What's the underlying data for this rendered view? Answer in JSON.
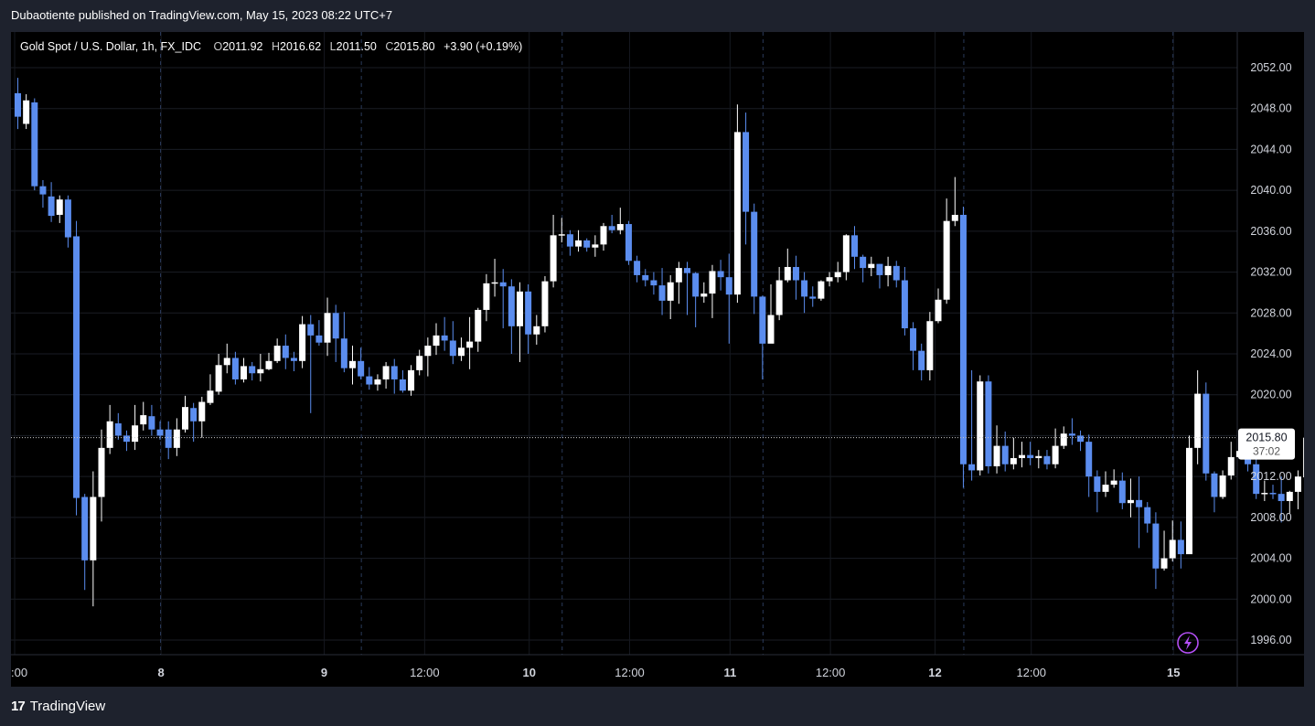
{
  "publisher_line": "Dubaotiente published on TradingView.com, May 15, 2023 08:22 UTC+7",
  "footer": {
    "brand": "TradingView",
    "logo": "17"
  },
  "legend": {
    "symbol": "Gold Spot / U.S. Dollar, 1h, FX_IDC",
    "o_label": "O",
    "o_value": "2011.92",
    "h_label": "H",
    "h_value": "2016.62",
    "l_label": "L",
    "l_value": "2011.50",
    "c_label": "C",
    "c_value": "2015.80",
    "change": "+3.90 (+0.19%)"
  },
  "price_tag": {
    "price": "2015.80",
    "countdown": "37:02"
  },
  "colors": {
    "up": "#ffffff",
    "down": "#5b8def",
    "background": "#000000",
    "frame": "#1e222d",
    "grid": "#1a1d24"
  },
  "chart_data": {
    "type": "candlestick",
    "ylim": [
      1993,
      2055
    ],
    "y_ticks": [
      "2052.00",
      "2048.00",
      "2044.00",
      "2040.00",
      "2036.00",
      "2032.00",
      "2028.00",
      "2024.00",
      "2020.00",
      "2016.00",
      "2012.00",
      "2008.00",
      "2004.00",
      "2000.00",
      "1996.00"
    ],
    "x_ticks": [
      ":00",
      "8",
      "9",
      "12:00",
      "10",
      "12:00",
      "11",
      "12:00",
      "12",
      "12:00",
      "15"
    ],
    "x_tick_bold": [
      false,
      true,
      true,
      false,
      true,
      false,
      true,
      false,
      true,
      false,
      true
    ],
    "x_tick_index": [
      0,
      17.5,
      37,
      49,
      61.5,
      73.5,
      85.5,
      97.5,
      110,
      121.5,
      138.5
    ],
    "day_separator_index": [
      17,
      41,
      65,
      89,
      113,
      138
    ],
    "current_price": 2015.8,
    "candles": [
      [
        2049.5,
        2047.2,
        2051.0,
        2046.0
      ],
      [
        2046.5,
        2048.8,
        2049.4,
        2046.0
      ],
      [
        2048.6,
        2040.4,
        2049.0,
        2040.0
      ],
      [
        2040.4,
        2039.6,
        2041.0,
        2038.3
      ],
      [
        2039.4,
        2037.5,
        2040.8,
        2036.9
      ],
      [
        2037.6,
        2039.1,
        2039.5,
        2036.8
      ],
      [
        2039.1,
        2035.4,
        2039.5,
        2034.4
      ],
      [
        2035.5,
        2009.9,
        2037.0,
        2008.2
      ],
      [
        2010.0,
        2003.8,
        2010.3,
        2000.9
      ],
      [
        2003.8,
        2010.0,
        2012.5,
        1999.3
      ],
      [
        2010.0,
        2014.8,
        2016.6,
        2007.6
      ],
      [
        2014.8,
        2017.4,
        2019.0,
        2014.2
      ],
      [
        2017.2,
        2016.0,
        2018.2,
        2015.6
      ],
      [
        2016.0,
        2015.4,
        2016.5,
        2014.5
      ],
      [
        2015.4,
        2017.0,
        2019.0,
        2014.6
      ],
      [
        2017.1,
        2018.0,
        2019.3,
        2016.5
      ],
      [
        2017.9,
        2016.6,
        2019.0,
        2016.0
      ],
      [
        2016.6,
        2016.0,
        2017.4,
        2015.6
      ],
      [
        2016.6,
        2014.8,
        2017.4,
        2013.7
      ],
      [
        2014.8,
        2016.6,
        2017.7,
        2014.0
      ],
      [
        2016.6,
        2018.8,
        2019.9,
        2016.3
      ],
      [
        2018.7,
        2017.4,
        2019.2,
        2015.4
      ],
      [
        2017.4,
        2019.3,
        2019.8,
        2015.8
      ],
      [
        2019.2,
        2020.4,
        2022.0,
        2019.0
      ],
      [
        2020.3,
        2022.9,
        2024.0,
        2020.0
      ],
      [
        2022.9,
        2023.6,
        2025.0,
        2022.1
      ],
      [
        2023.6,
        2021.5,
        2024.2,
        2021.0
      ],
      [
        2021.5,
        2022.8,
        2023.6,
        2021.2
      ],
      [
        2022.8,
        2022.1,
        2023.2,
        2021.4
      ],
      [
        2022.1,
        2022.5,
        2024.0,
        2021.3
      ],
      [
        2022.5,
        2023.3,
        2024.1,
        2022.4
      ],
      [
        2023.3,
        2024.8,
        2025.5,
        2023.1
      ],
      [
        2024.8,
        2023.6,
        2025.9,
        2022.5
      ],
      [
        2023.6,
        2023.3,
        2024.2,
        2022.3
      ],
      [
        2023.3,
        2026.9,
        2027.7,
        2022.6
      ],
      [
        2026.9,
        2025.8,
        2027.8,
        2018.2
      ],
      [
        2025.8,
        2025.1,
        2027.3,
        2024.8
      ],
      [
        2025.1,
        2028.0,
        2029.5,
        2023.8
      ],
      [
        2028.0,
        2025.5,
        2028.8,
        2023.2
      ],
      [
        2025.5,
        2022.6,
        2028.1,
        2022.2
      ],
      [
        2022.6,
        2023.3,
        2024.8,
        2021.0
      ],
      [
        2023.3,
        2021.8,
        2024.6,
        2021.5
      ],
      [
        2021.8,
        2021.0,
        2022.7,
        2020.5
      ],
      [
        2021.0,
        2021.5,
        2022.0,
        2020.4
      ],
      [
        2021.5,
        2022.8,
        2023.2,
        2020.6
      ],
      [
        2022.8,
        2021.5,
        2023.5,
        2020.1
      ],
      [
        2021.5,
        2020.4,
        2022.4,
        2020.2
      ],
      [
        2020.4,
        2022.4,
        2022.9,
        2019.9
      ],
      [
        2022.4,
        2023.8,
        2024.4,
        2021.9
      ],
      [
        2023.8,
        2024.8,
        2025.6,
        2021.8
      ],
      [
        2024.8,
        2025.8,
        2027.0,
        2023.9
      ],
      [
        2025.8,
        2025.3,
        2027.6,
        2024.3
      ],
      [
        2025.3,
        2023.8,
        2027.2,
        2023.0
      ],
      [
        2023.8,
        2024.6,
        2025.6,
        2023.3
      ],
      [
        2024.6,
        2025.2,
        2027.6,
        2022.5
      ],
      [
        2025.2,
        2028.3,
        2028.5,
        2024.2
      ],
      [
        2028.3,
        2030.9,
        2031.8,
        2027.2
      ],
      [
        2030.9,
        2031.0,
        2033.3,
        2029.6
      ],
      [
        2031.0,
        2030.6,
        2032.3,
        2026.5
      ],
      [
        2030.6,
        2026.7,
        2031.3,
        2024.0
      ],
      [
        2026.7,
        2030.1,
        2031.0,
        2023.2
      ],
      [
        2030.1,
        2025.9,
        2030.8,
        2024.0
      ],
      [
        2025.9,
        2026.7,
        2027.8,
        2024.9
      ],
      [
        2026.7,
        2031.1,
        2031.6,
        2026.1
      ],
      [
        2031.1,
        2035.6,
        2037.6,
        2030.5
      ],
      [
        2035.6,
        2035.7,
        2037.3,
        2034.9
      ],
      [
        2035.7,
        2034.5,
        2036.1,
        2033.6
      ],
      [
        2034.5,
        2035.1,
        2036.1,
        2034.0
      ],
      [
        2035.1,
        2034.4,
        2035.3,
        2034.0
      ],
      [
        2034.4,
        2034.7,
        2035.6,
        2033.5
      ],
      [
        2034.7,
        2036.5,
        2036.8,
        2034.1
      ],
      [
        2036.5,
        2036.1,
        2037.6,
        2035.8
      ],
      [
        2036.1,
        2036.7,
        2038.3,
        2035.7
      ],
      [
        2036.7,
        2033.1,
        2037.0,
        2032.7
      ],
      [
        2033.1,
        2031.7,
        2033.6,
        2031.0
      ],
      [
        2031.7,
        2031.2,
        2032.3,
        2030.6
      ],
      [
        2031.2,
        2030.7,
        2032.0,
        2029.8
      ],
      [
        2030.7,
        2029.2,
        2032.4,
        2027.8
      ],
      [
        2029.2,
        2031.0,
        2031.7,
        2027.4
      ],
      [
        2031.0,
        2032.4,
        2033.0,
        2028.9
      ],
      [
        2032.4,
        2031.9,
        2033.0,
        2027.8
      ],
      [
        2031.9,
        2029.6,
        2032.0,
        2026.6
      ],
      [
        2029.6,
        2029.9,
        2031.0,
        2029.0
      ],
      [
        2029.9,
        2032.1,
        2032.7,
        2027.5
      ],
      [
        2032.1,
        2031.5,
        2033.2,
        2030.2
      ],
      [
        2031.5,
        2029.8,
        2033.8,
        2025.0
      ],
      [
        2029.8,
        2045.7,
        2048.4,
        2029.0
      ],
      [
        2045.7,
        2037.9,
        2047.6,
        2034.7
      ],
      [
        2037.9,
        2029.6,
        2038.7,
        2027.9
      ],
      [
        2029.6,
        2025.0,
        2029.7,
        2021.5
      ],
      [
        2025.0,
        2027.8,
        2030.8,
        2025.5
      ],
      [
        2027.8,
        2031.2,
        2032.5,
        2027.3
      ],
      [
        2031.2,
        2032.5,
        2034.3,
        2031.0
      ],
      [
        2032.5,
        2031.2,
        2033.6,
        2029.3
      ],
      [
        2031.2,
        2029.6,
        2032.0,
        2028.0
      ],
      [
        2029.6,
        2029.4,
        2030.6,
        2028.6
      ],
      [
        2029.4,
        2031.1,
        2031.2,
        2029.2
      ],
      [
        2031.1,
        2031.5,
        2032.0,
        2030.6
      ],
      [
        2031.5,
        2032.0,
        2033.0,
        2031.0
      ],
      [
        2032.0,
        2035.6,
        2035.7,
        2031.2
      ],
      [
        2035.6,
        2033.5,
        2036.5,
        2032.3
      ],
      [
        2033.5,
        2032.4,
        2033.7,
        2031.0
      ],
      [
        2032.4,
        2032.8,
        2033.5,
        2031.6
      ],
      [
        2032.8,
        2031.7,
        2032.8,
        2030.4
      ],
      [
        2031.7,
        2032.6,
        2033.5,
        2030.6
      ],
      [
        2032.6,
        2031.2,
        2033.1,
        2030.5
      ],
      [
        2031.2,
        2026.5,
        2032.5,
        2025.8
      ],
      [
        2026.5,
        2024.3,
        2027.1,
        2022.4
      ],
      [
        2024.3,
        2022.4,
        2025.0,
        2021.4
      ],
      [
        2022.4,
        2027.2,
        2028.1,
        2021.4
      ],
      [
        2027.2,
        2029.3,
        2030.4,
        2027.0
      ],
      [
        2029.3,
        2037.0,
        2039.2,
        2028.9
      ],
      [
        2037.0,
        2037.6,
        2041.3,
        2036.5
      ],
      [
        2037.6,
        2013.2,
        2038.4,
        2010.9
      ],
      [
        2013.2,
        2012.6,
        2022.4,
        2011.6
      ],
      [
        2012.6,
        2021.3,
        2021.9,
        2012.1
      ],
      [
        2021.3,
        2013.0,
        2021.9,
        2012.3
      ],
      [
        2013.0,
        2015.0,
        2017.0,
        2012.3
      ],
      [
        2015.0,
        2013.2,
        2016.4,
        2012.5
      ],
      [
        2013.2,
        2013.8,
        2015.8,
        2012.7
      ],
      [
        2013.8,
        2014.1,
        2015.4,
        2012.9
      ],
      [
        2014.1,
        2013.8,
        2015.4,
        2013.1
      ],
      [
        2013.8,
        2014.0,
        2014.6,
        2012.8
      ],
      [
        2014.0,
        2013.2,
        2014.6,
        2012.7
      ],
      [
        2013.2,
        2015.0,
        2016.7,
        2012.8
      ],
      [
        2015.0,
        2016.2,
        2016.9,
        2014.7
      ],
      [
        2016.2,
        2016.0,
        2017.7,
        2015.1
      ],
      [
        2016.0,
        2015.4,
        2016.5,
        2014.5
      ],
      [
        2015.4,
        2012.0,
        2016.1,
        2010.0
      ],
      [
        2012.0,
        2010.5,
        2012.6,
        2008.5
      ],
      [
        2010.5,
        2011.2,
        2012.5,
        2010.0
      ],
      [
        2011.2,
        2011.6,
        2012.7,
        2010.9
      ],
      [
        2011.6,
        2009.4,
        2012.4,
        2008.8
      ],
      [
        2009.4,
        2009.7,
        2011.8,
        2008.0
      ],
      [
        2009.7,
        2009.0,
        2012.0,
        2005.0
      ],
      [
        2009.0,
        2007.4,
        2009.5,
        2006.5
      ],
      [
        2007.4,
        2003.0,
        2008.5,
        2001.0
      ],
      [
        2003.0,
        2004.0,
        2006.7,
        2002.8
      ],
      [
        2004.0,
        2005.8,
        2007.7,
        2003.7
      ],
      [
        2005.8,
        2004.4,
        2007.6,
        2003.0
      ],
      [
        2004.4,
        2014.8,
        2016.0,
        2004.5
      ],
      [
        2014.8,
        2020.1,
        2022.4,
        2013.2
      ],
      [
        2020.1,
        2012.3,
        2021.2,
        2011.6
      ],
      [
        2012.3,
        2010.0,
        2012.5,
        2008.5
      ],
      [
        2010.0,
        2012.1,
        2012.6,
        2009.8
      ],
      [
        2012.1,
        2013.9,
        2015.4,
        2011.7
      ],
      [
        2013.9,
        2014.5,
        2015.8,
        2013.8
      ],
      [
        2014.5,
        2013.2,
        2014.9,
        2012.5
      ],
      [
        2013.2,
        2010.3,
        2013.7,
        2009.8
      ],
      [
        2010.3,
        2010.4,
        2011.6,
        2009.6
      ],
      [
        2010.4,
        2010.3,
        2011.2,
        2009.8
      ],
      [
        2010.3,
        2009.6,
        2012.0,
        2007.5
      ],
      [
        2009.6,
        2010.5,
        2010.6,
        2008.4
      ],
      [
        2010.5,
        2012.0,
        2012.6,
        2008.8
      ],
      [
        2011.92,
        2015.8,
        2016.62,
        2011.5
      ]
    ]
  }
}
